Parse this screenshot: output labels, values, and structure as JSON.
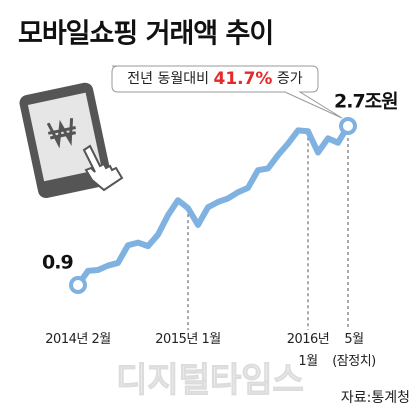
{
  "chart_data": {
    "type": "line",
    "title": "모바일쇼핑 거래액 추이",
    "categories": [
      "2014년 2월",
      null,
      null,
      null,
      null,
      null,
      null,
      null,
      null,
      null,
      null,
      "2015년 1월",
      null,
      null,
      null,
      null,
      null,
      null,
      null,
      null,
      null,
      null,
      null,
      "2016년\n1월",
      null,
      null,
      null,
      "5월\n(잠정치)"
    ],
    "values": [
      0.9,
      1.06,
      1.07,
      1.12,
      1.15,
      1.35,
      1.38,
      1.34,
      1.47,
      1.69,
      1.86,
      1.77,
      1.58,
      1.78,
      1.84,
      1.88,
      1.95,
      2.0,
      2.2,
      2.22,
      2.37,
      2.5,
      2.65,
      2.64,
      2.4,
      2.56,
      2.51,
      2.7
    ],
    "value_labels": [
      "0.9",
      null,
      null,
      null,
      null,
      null,
      null,
      null,
      null,
      null,
      null,
      null,
      null,
      null,
      null,
      null,
      null,
      null,
      null,
      null,
      null,
      null,
      null,
      null,
      null,
      null,
      null,
      "2.7조원"
    ],
    "color": "#7fb2e0",
    "annotation": {
      "before": "전년 동월대비",
      "highlight": "41.7%",
      "after": "증가"
    },
    "source": "자료:통계청",
    "watermark": "디지털타임스"
  }
}
